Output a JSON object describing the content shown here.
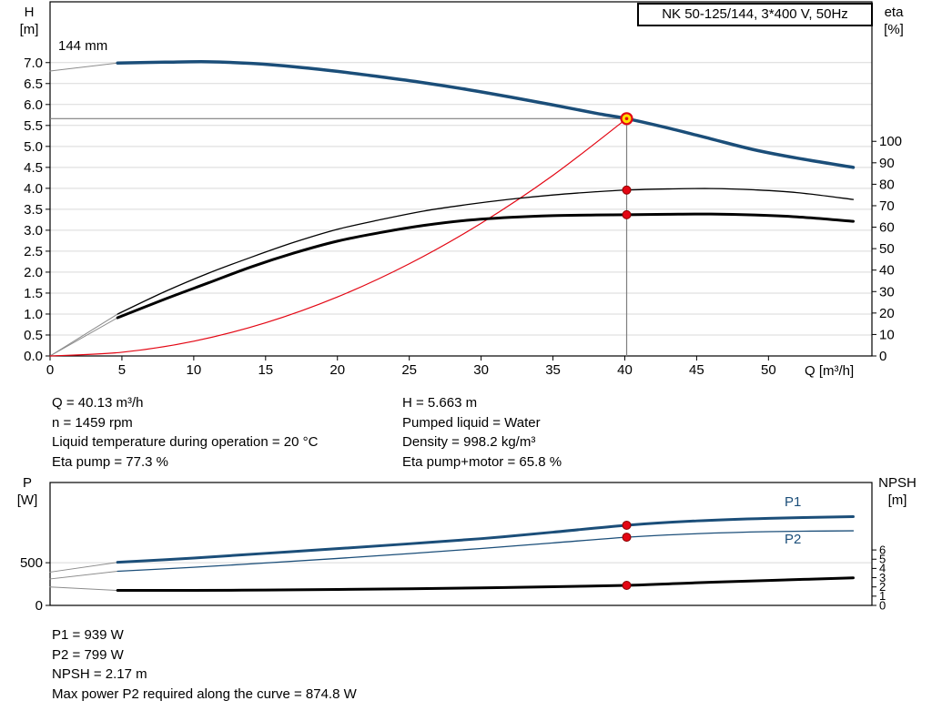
{
  "title_box": {
    "label": "NK 50-125/144, 3*400 V, 50Hz"
  },
  "top_chart": {
    "left_axis_title_line1": "H",
    "left_axis_title_line2": "[m]",
    "right_axis_title_line1": "eta",
    "right_axis_title_line2": "[%]",
    "x_axis_title": "Q [m³/h]",
    "impeller_label": "144 mm"
  },
  "operating_info": {
    "left": [
      "Q = 40.13 m³/h",
      "n = 1459 rpm",
      "Liquid temperature during operation = 20 °C",
      "Eta pump = 77.3 %"
    ],
    "right": [
      "H = 5.663 m",
      "Pumped liquid = Water",
      "Density = 998.2 kg/m³",
      "Eta pump+motor = 65.8 %"
    ]
  },
  "bottom_chart": {
    "left_axis_title_line1": "P",
    "left_axis_title_line2": "[W]",
    "right_axis_title_line1": "NPSH",
    "right_axis_title_line2": "[m]",
    "p1_curve_label": "P1",
    "p2_curve_label": "P2"
  },
  "power_info": [
    "P1 = 939 W",
    "P2 = 799 W",
    "NPSH = 2.17 m",
    "Max power P2 required along the curve = 874.8 W"
  ],
  "colors": {
    "blue": "#1b4e79",
    "black": "#000000",
    "red": "#e30613",
    "dot_edge": "#8b0000",
    "lead": "#8c8c8c",
    "grid": "#d9d9d9",
    "crosshair": "#7f7f7f",
    "duty_fill": "#ffdd00",
    "frame": "#000000"
  },
  "chart_data": [
    {
      "type": "line",
      "title": "NK 50-125/144, 3*400 V, 50Hz",
      "xlabel": "Q [m³/h]",
      "ylabel_left": "H [m]",
      "ylabel_right": "eta [%]",
      "xlim": [
        0,
        57.2
      ],
      "ylim_left": [
        0,
        8.45
      ],
      "ylim_right": [
        0,
        165
      ],
      "grid": true,
      "xticks": {
        "values": [
          0,
          5,
          10,
          15,
          20,
          25,
          30,
          35,
          40,
          45,
          50
        ],
        "labels": [
          "0",
          "5",
          "10",
          "15",
          "20",
          "25",
          "30",
          "35",
          "40",
          "45",
          "50"
        ]
      },
      "yticks_left": {
        "values": [
          0,
          0.5,
          1,
          1.5,
          2,
          2.5,
          3,
          3.5,
          4,
          4.5,
          5,
          5.5,
          6,
          6.5,
          7
        ],
        "labels": [
          "0.0",
          "0.5",
          "1.0",
          "1.5",
          "2.0",
          "2.5",
          "3.0",
          "3.5",
          "4.0",
          "4.5",
          "5.0",
          "5.5",
          "6.0",
          "6.5",
          "7.0"
        ]
      },
      "yticks_right": {
        "values": [
          0,
          10,
          20,
          30,
          40,
          50,
          60,
          70,
          80,
          90,
          100
        ],
        "labels": [
          "0",
          "10",
          "20",
          "30",
          "40",
          "50",
          "60",
          "70",
          "80",
          "90",
          "100"
        ]
      },
      "series": [
        {
          "name": "lead-H",
          "axis": "left",
          "color": "lead",
          "width": 1,
          "x": [
            0,
            4.7
          ],
          "y": [
            6.8,
            6.99
          ]
        },
        {
          "name": "lead-eta-pump",
          "axis": "right",
          "color": "lead",
          "width": 1,
          "x": [
            0,
            4.7
          ],
          "y": [
            0,
            19.5
          ]
        },
        {
          "name": "lead-eta-pump-motor",
          "axis": "right",
          "color": "lead",
          "width": 1,
          "x": [
            0,
            4.7
          ],
          "y": [
            0,
            17.8
          ]
        },
        {
          "name": "system-curve",
          "axis": "left",
          "color": "red",
          "width": 1.2,
          "x": [
            0,
            5,
            10,
            15,
            20,
            25,
            30,
            35,
            40.13
          ],
          "y": [
            0,
            0.088,
            0.352,
            0.791,
            1.407,
            2.199,
            3.166,
            4.309,
            5.663
          ]
        },
        {
          "name": "H-Q-144mm",
          "axis": "left",
          "color": "blue",
          "width": 3.5,
          "x": [
            4.7,
            8,
            11,
            14,
            17,
            20,
            23,
            26,
            29,
            32,
            35,
            38,
            40.13,
            43,
            46,
            49,
            52,
            55.9
          ],
          "y": [
            6.99,
            7.01,
            7.02,
            6.98,
            6.9,
            6.79,
            6.66,
            6.52,
            6.36,
            6.18,
            5.99,
            5.79,
            5.663,
            5.44,
            5.18,
            4.92,
            4.72,
            4.5
          ]
        },
        {
          "name": "eta-pump",
          "axis": "right",
          "color": "black",
          "width": 1.3,
          "x": [
            4.7,
            8,
            11,
            14,
            17,
            20,
            23,
            26,
            29,
            32,
            35,
            38,
            40.13,
            43,
            46,
            49,
            52,
            55.9
          ],
          "y": [
            19.5,
            30,
            38.5,
            46,
            53,
            59,
            63.5,
            67.5,
            70.5,
            73,
            75,
            76.5,
            77.3,
            77.8,
            78,
            77.4,
            76.1,
            72.9
          ]
        },
        {
          "name": "eta-pump-motor",
          "axis": "right",
          "color": "black",
          "width": 3,
          "x": [
            4.7,
            8,
            11,
            14,
            17,
            20,
            23,
            26,
            29,
            32,
            35,
            38,
            40.13,
            43,
            46,
            49,
            52,
            55.9
          ],
          "y": [
            17.8,
            26.5,
            34,
            41.5,
            48,
            53.5,
            57.5,
            60.8,
            63.2,
            64.6,
            65.4,
            65.7,
            65.8,
            66.0,
            66.1,
            65.7,
            64.8,
            62.7
          ]
        }
      ],
      "crosshair": {
        "q": 40.13,
        "h": 5.663
      },
      "markers": [
        {
          "type": "duty",
          "axis": "left",
          "x": 40.13,
          "y": 5.663
        },
        {
          "type": "dot",
          "axis": "right",
          "x": 40.13,
          "y": 77.3
        },
        {
          "type": "dot",
          "axis": "right",
          "x": 40.13,
          "y": 65.8
        }
      ]
    },
    {
      "type": "line",
      "title": "",
      "xlabel": "",
      "ylabel_left": "P [W]",
      "ylabel_right": "NPSH [m]",
      "xlim": [
        0,
        57.2
      ],
      "ylim_left": [
        0,
        1440
      ],
      "ylim_right": [
        0,
        13.3
      ],
      "grid": true,
      "xticks": {
        "values": [],
        "labels": []
      },
      "yticks_left": {
        "values": [
          0,
          500
        ],
        "labels": [
          "0",
          "500"
        ]
      },
      "yticks_right": {
        "values": [
          0,
          1,
          2,
          3,
          4,
          5,
          6
        ],
        "labels": [
          "0",
          "1",
          "2",
          "3",
          "4",
          "5",
          "6"
        ]
      },
      "series": [
        {
          "name": "lead-P1",
          "axis": "left",
          "color": "lead",
          "width": 1,
          "x": [
            0,
            4.7
          ],
          "y": [
            390,
            505
          ]
        },
        {
          "name": "lead-P2",
          "axis": "left",
          "color": "lead",
          "width": 1,
          "x": [
            0,
            4.7
          ],
          "y": [
            310,
            400
          ]
        },
        {
          "name": "lead-NPSH",
          "axis": "right",
          "color": "lead",
          "width": 1,
          "x": [
            0,
            4.7
          ],
          "y": [
            2.0,
            1.62
          ]
        },
        {
          "name": "P1",
          "axis": "left",
          "color": "blue",
          "width": 3,
          "x": [
            4.7,
            10,
            15,
            20,
            25,
            30,
            35,
            40.13,
            45,
            50,
            55.9
          ],
          "y": [
            505,
            555,
            610,
            665,
            722,
            782,
            858,
            939,
            990,
            1020,
            1040
          ]
        },
        {
          "name": "P2",
          "axis": "left",
          "color": "blue",
          "width": 1.3,
          "x": [
            4.7,
            10,
            15,
            20,
            25,
            30,
            35,
            40.13,
            45,
            50,
            55.9
          ],
          "y": [
            400,
            447,
            497,
            550,
            607,
            667,
            732,
            799,
            840,
            864,
            874
          ]
        },
        {
          "name": "NPSH",
          "axis": "right",
          "color": "black",
          "width": 3,
          "x": [
            4.7,
            10,
            15,
            20,
            25,
            30,
            35,
            40.13,
            45,
            50,
            55.9
          ],
          "y": [
            1.62,
            1.63,
            1.66,
            1.72,
            1.8,
            1.9,
            2.02,
            2.17,
            2.45,
            2.7,
            2.98
          ]
        }
      ],
      "markers": [
        {
          "type": "dot",
          "axis": "left",
          "x": 40.13,
          "y": 939
        },
        {
          "type": "dot",
          "axis": "left",
          "x": 40.13,
          "y": 799
        },
        {
          "type": "dot",
          "axis": "right",
          "x": 40.13,
          "y": 2.17
        }
      ]
    }
  ]
}
